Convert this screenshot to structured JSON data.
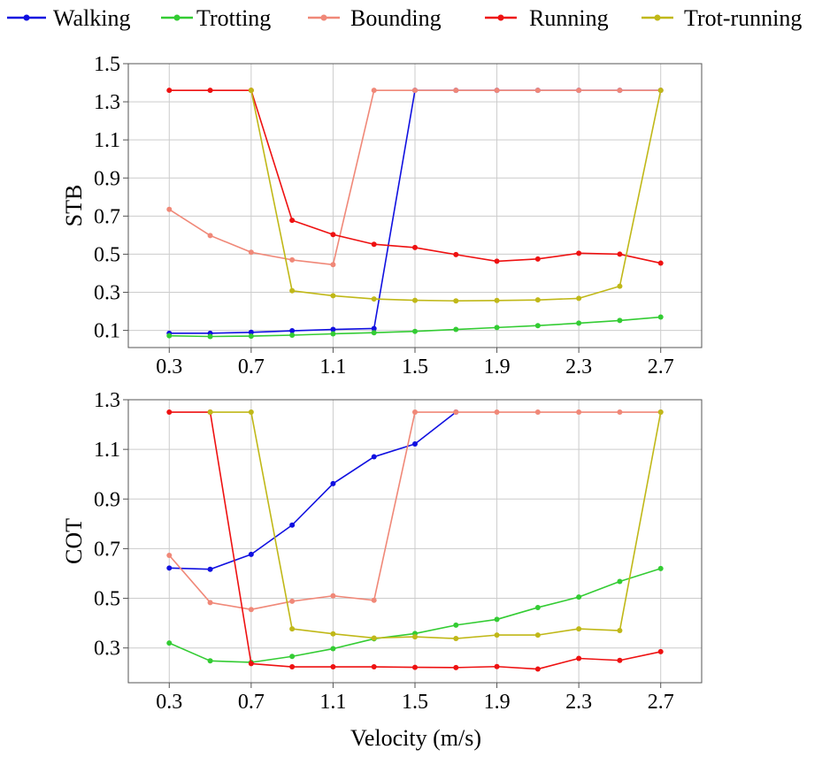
{
  "legend": [
    {
      "name": "Walking",
      "color": "#1010e0"
    },
    {
      "name": "Trotting",
      "color": "#33cc33"
    },
    {
      "name": "Bounding",
      "color": "#f08878"
    },
    {
      "name": "Running",
      "color": "#ee1111"
    },
    {
      "name": "Trot-running",
      "color": "#c0b818"
    }
  ],
  "xlabel": "Velocity (m/s)",
  "chart_data": [
    {
      "type": "line",
      "title": "",
      "ylabel": "STB",
      "xlim": [
        0.1,
        2.9
      ],
      "ylim": [
        0.01,
        1.5
      ],
      "grid": true,
      "x": [
        0.3,
        0.5,
        0.7,
        0.9,
        1.1,
        1.3,
        1.5,
        1.7,
        1.9,
        2.1,
        2.3,
        2.5,
        2.7
      ],
      "xticks": [
        "0.3",
        "0.7",
        "1.1",
        "1.5",
        "1.9",
        "2.3",
        "2.7"
      ],
      "yticks": [
        "0.1",
        "0.3",
        "0.5",
        "0.7",
        "0.9",
        "1.1",
        "1.3",
        "1.5"
      ],
      "series": [
        {
          "name": "Walking",
          "color": "#1010e0",
          "points": [
            [
              0.3,
              0.085
            ],
            [
              0.5,
              0.085
            ],
            [
              0.7,
              0.09
            ],
            [
              0.9,
              0.098
            ],
            [
              1.1,
              0.105
            ],
            [
              1.3,
              0.11
            ],
            [
              1.5,
              1.36
            ],
            [
              1.7,
              1.36
            ],
            [
              1.9,
              1.36
            ],
            [
              2.1,
              1.36
            ],
            [
              2.3,
              1.36
            ],
            [
              2.5,
              1.36
            ],
            [
              2.7,
              1.36
            ]
          ]
        },
        {
          "name": "Trotting",
          "color": "#33cc33",
          "points": [
            [
              0.3,
              0.072
            ],
            [
              0.5,
              0.068
            ],
            [
              0.7,
              0.07
            ],
            [
              0.9,
              0.075
            ],
            [
              1.1,
              0.082
            ],
            [
              1.3,
              0.088
            ],
            [
              1.5,
              0.095
            ],
            [
              1.7,
              0.105
            ],
            [
              1.9,
              0.115
            ],
            [
              2.1,
              0.125
            ],
            [
              2.3,
              0.138
            ],
            [
              2.5,
              0.152
            ],
            [
              2.7,
              0.17
            ]
          ]
        },
        {
          "name": "Bounding",
          "color": "#f08878",
          "points": [
            [
              0.3,
              0.735
            ],
            [
              0.5,
              0.598
            ],
            [
              0.7,
              0.51
            ],
            [
              0.9,
              0.47
            ],
            [
              1.1,
              0.445
            ],
            [
              1.3,
              1.36
            ],
            [
              1.5,
              1.36
            ],
            [
              1.7,
              1.36
            ],
            [
              1.9,
              1.36
            ],
            [
              2.1,
              1.36
            ],
            [
              2.3,
              1.36
            ],
            [
              2.5,
              1.36
            ],
            [
              2.7,
              1.36
            ]
          ]
        },
        {
          "name": "Running",
          "color": "#ee1111",
          "points": [
            [
              0.3,
              1.36
            ],
            [
              0.5,
              1.36
            ],
            [
              0.7,
              1.36
            ],
            [
              0.9,
              0.678
            ],
            [
              1.1,
              0.603
            ],
            [
              1.3,
              0.552
            ],
            [
              1.5,
              0.535
            ],
            [
              1.7,
              0.498
            ],
            [
              1.9,
              0.463
            ],
            [
              2.1,
              0.475
            ],
            [
              2.3,
              0.505
            ],
            [
              2.5,
              0.5
            ],
            [
              2.7,
              0.453
            ]
          ]
        },
        {
          "name": "Trot-running",
          "color": "#c0b818",
          "points": [
            [
              0.7,
              1.36
            ],
            [
              0.9,
              0.308
            ],
            [
              1.1,
              0.282
            ],
            [
              1.3,
              0.265
            ],
            [
              1.5,
              0.258
            ],
            [
              1.7,
              0.255
            ],
            [
              1.9,
              0.257
            ],
            [
              2.1,
              0.26
            ],
            [
              2.3,
              0.268
            ],
            [
              2.5,
              0.332
            ],
            [
              2.7,
              1.36
            ]
          ]
        }
      ]
    },
    {
      "type": "line",
      "title": "",
      "ylabel": "COT",
      "xlim": [
        0.1,
        2.9
      ],
      "ylim": [
        0.16,
        1.3
      ],
      "grid": true,
      "x": [
        0.3,
        0.5,
        0.7,
        0.9,
        1.1,
        1.3,
        1.5,
        1.7,
        1.9,
        2.1,
        2.3,
        2.5,
        2.7
      ],
      "xticks": [
        "0.3",
        "0.7",
        "1.1",
        "1.5",
        "1.9",
        "2.3",
        "2.7"
      ],
      "yticks": [
        "0.3",
        "0.5",
        "0.7",
        "0.9",
        "1.1",
        "1.3"
      ],
      "series": [
        {
          "name": "Walking",
          "color": "#1010e0",
          "points": [
            [
              0.3,
              0.622
            ],
            [
              0.5,
              0.617
            ],
            [
              0.7,
              0.677
            ],
            [
              0.9,
              0.795
            ],
            [
              1.1,
              0.962
            ],
            [
              1.3,
              1.07
            ],
            [
              1.5,
              1.122
            ],
            [
              1.7,
              1.25
            ]
          ]
        },
        {
          "name": "Trotting",
          "color": "#33cc33",
          "points": [
            [
              0.3,
              0.32
            ],
            [
              0.5,
              0.248
            ],
            [
              0.7,
              0.242
            ],
            [
              0.9,
              0.266
            ],
            [
              1.1,
              0.297
            ],
            [
              1.3,
              0.337
            ],
            [
              1.5,
              0.358
            ],
            [
              1.7,
              0.392
            ],
            [
              1.9,
              0.415
            ],
            [
              2.1,
              0.463
            ],
            [
              2.3,
              0.505
            ],
            [
              2.5,
              0.568
            ],
            [
              2.7,
              0.62
            ]
          ]
        },
        {
          "name": "Bounding",
          "color": "#f08878",
          "points": [
            [
              0.3,
              0.673
            ],
            [
              0.5,
              0.483
            ],
            [
              0.7,
              0.455
            ],
            [
              0.9,
              0.488
            ],
            [
              1.1,
              0.51
            ],
            [
              1.3,
              0.492
            ],
            [
              1.5,
              1.25
            ],
            [
              1.7,
              1.25
            ],
            [
              1.9,
              1.25
            ],
            [
              2.1,
              1.25
            ],
            [
              2.3,
              1.25
            ],
            [
              2.5,
              1.25
            ],
            [
              2.7,
              1.25
            ]
          ]
        },
        {
          "name": "Running",
          "color": "#ee1111",
          "points": [
            [
              0.3,
              1.25
            ],
            [
              0.5,
              1.25
            ],
            [
              0.7,
              0.237
            ],
            [
              0.9,
              0.224
            ],
            [
              1.1,
              0.224
            ],
            [
              1.3,
              0.224
            ],
            [
              1.5,
              0.222
            ],
            [
              1.7,
              0.221
            ],
            [
              1.9,
              0.225
            ],
            [
              2.1,
              0.215
            ],
            [
              2.3,
              0.258
            ],
            [
              2.5,
              0.25
            ],
            [
              2.7,
              0.285
            ]
          ]
        },
        {
          "name": "Trot-running",
          "color": "#c0b818",
          "points": [
            [
              0.5,
              1.25
            ],
            [
              0.7,
              1.25
            ],
            [
              0.9,
              0.377
            ],
            [
              1.1,
              0.357
            ],
            [
              1.3,
              0.34
            ],
            [
              1.5,
              0.345
            ],
            [
              1.7,
              0.338
            ],
            [
              1.9,
              0.352
            ],
            [
              2.1,
              0.352
            ],
            [
              2.3,
              0.377
            ],
            [
              2.5,
              0.37
            ],
            [
              2.7,
              1.25
            ]
          ]
        }
      ]
    }
  ]
}
